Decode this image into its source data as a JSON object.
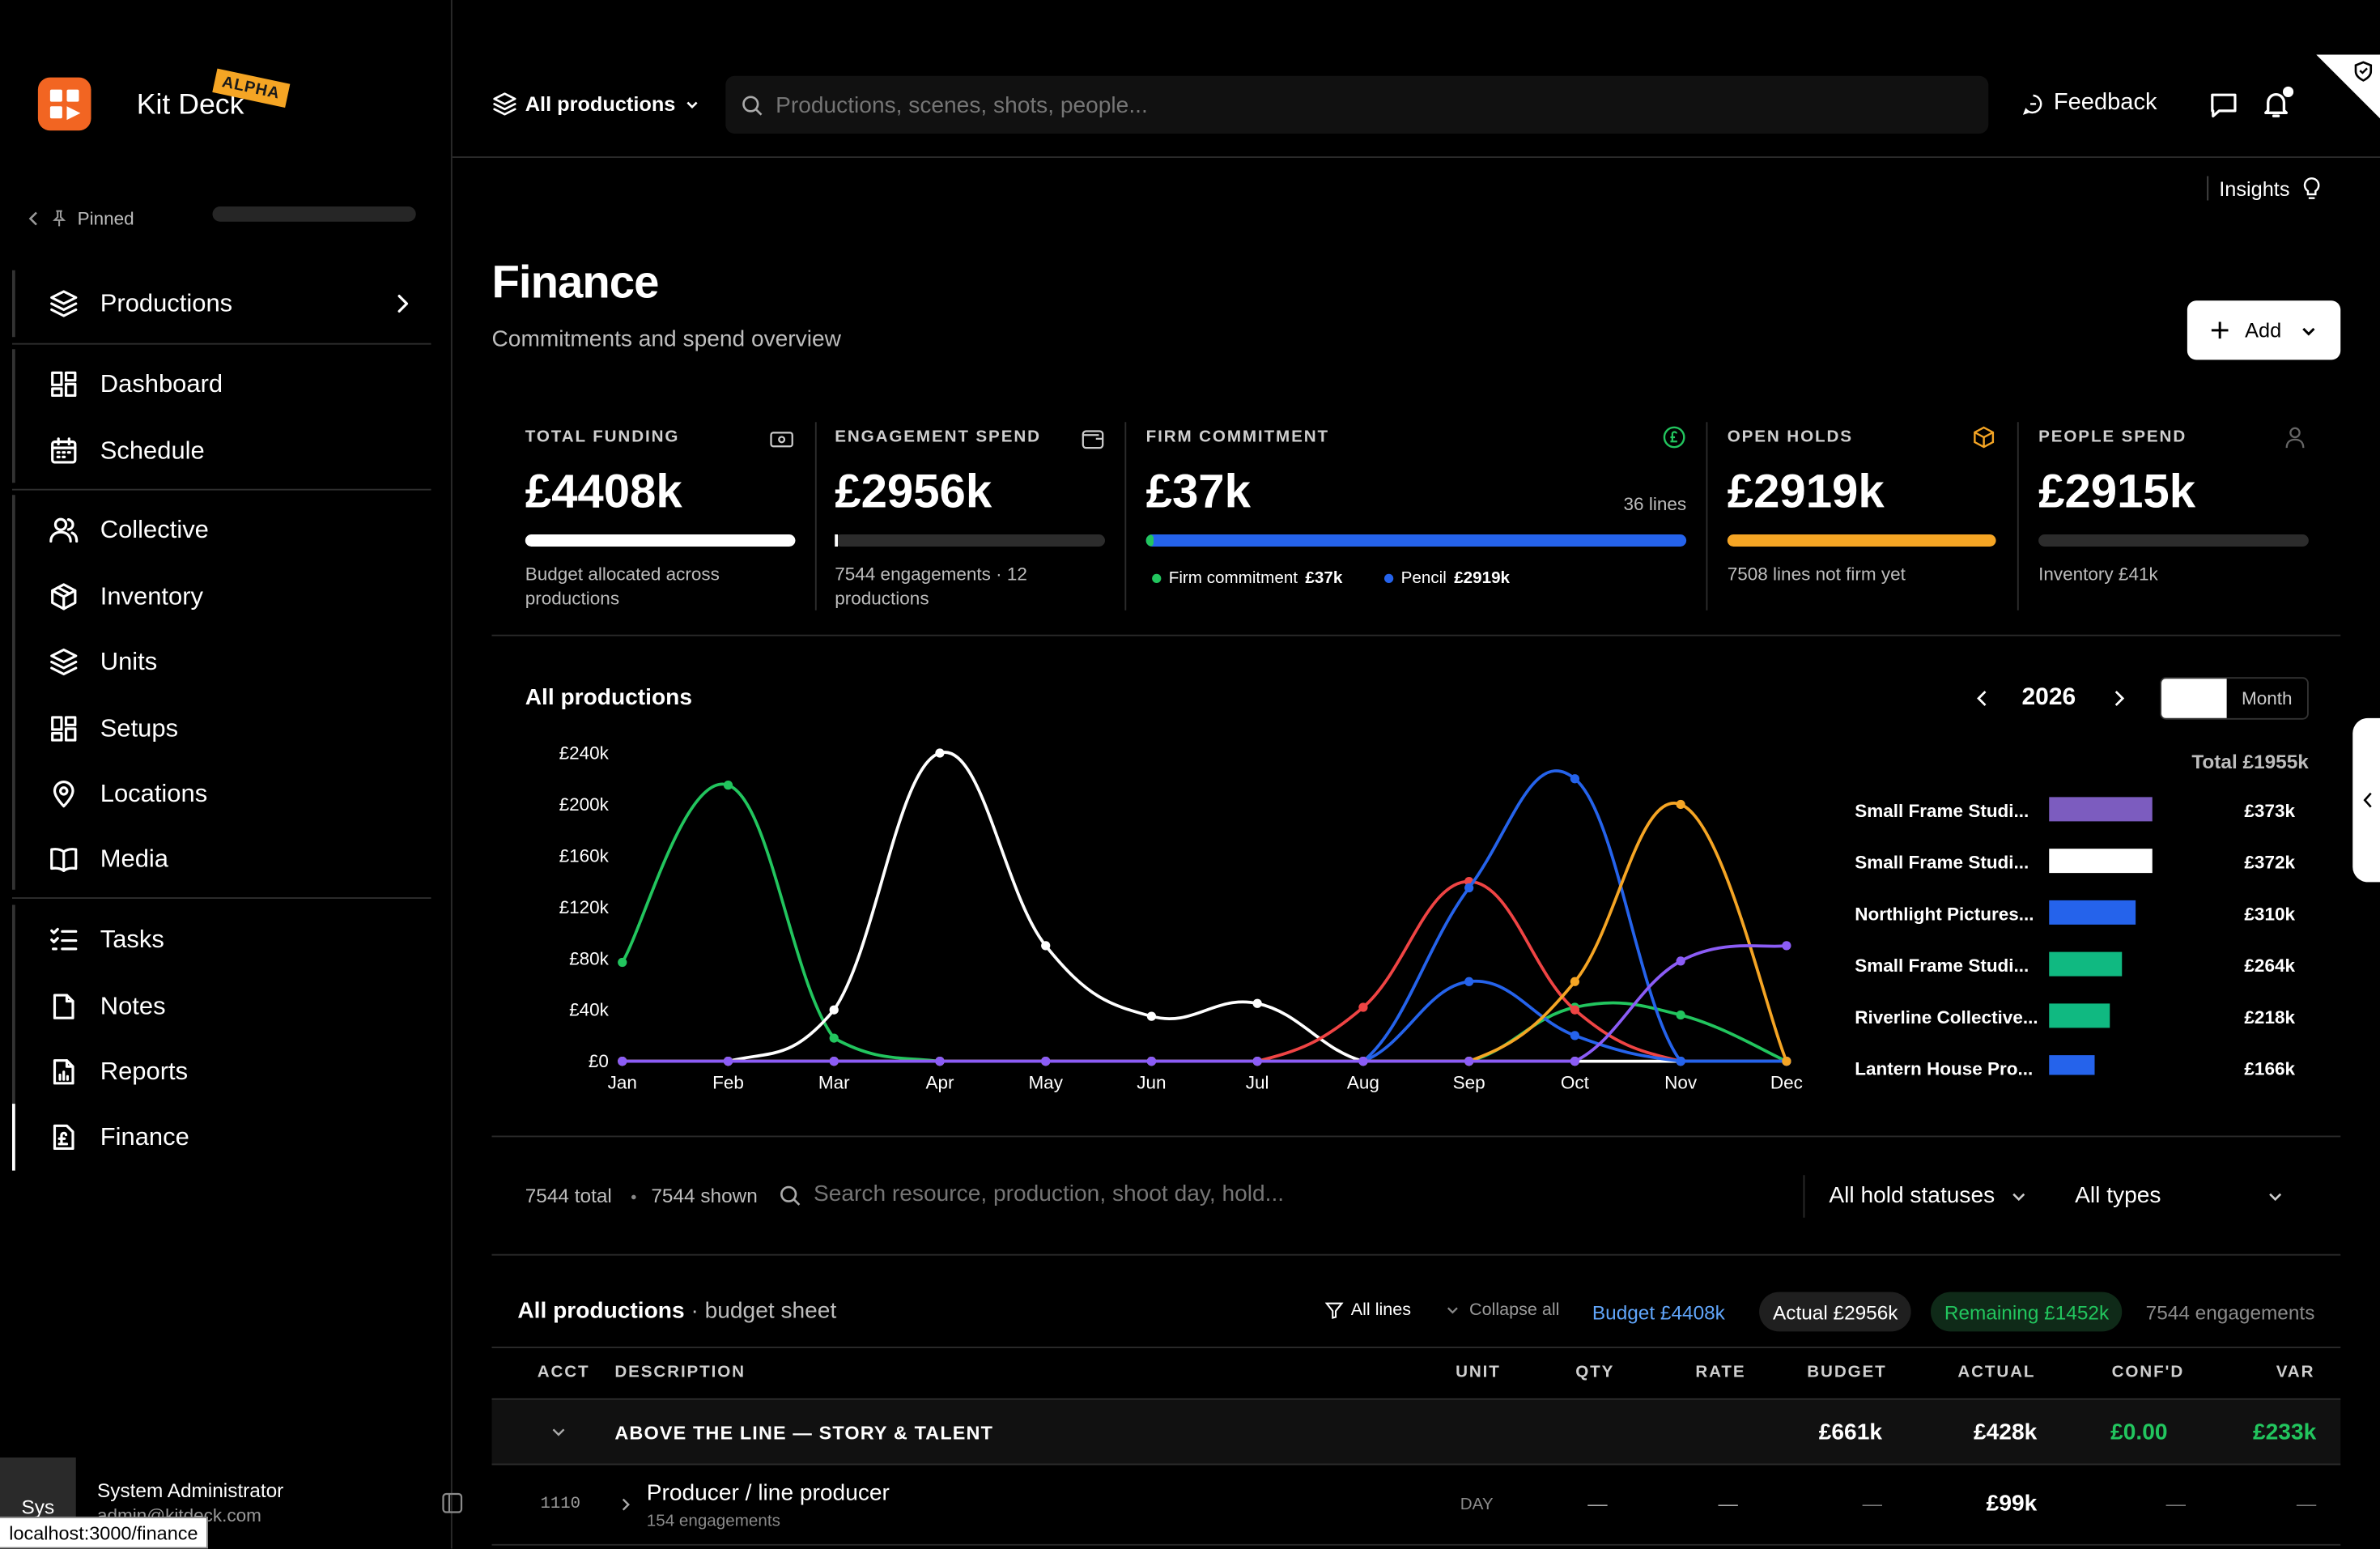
{
  "app": {
    "name": "Kit Deck",
    "badge": "ALPHA",
    "url": "localhost:3000/finance"
  },
  "topbar": {
    "scope": "All productions",
    "search_placeholder": "Productions, scenes, shots, people...",
    "feedback": "Feedback",
    "insights": "Insights"
  },
  "sidebar": {
    "pinned": "Pinned",
    "items": [
      {
        "label": "Productions",
        "icon": "layers-icon"
      },
      {
        "label": "Dashboard",
        "icon": "grid-icon"
      },
      {
        "label": "Schedule",
        "icon": "calendar-icon"
      },
      {
        "label": "Collective",
        "icon": "users-icon"
      },
      {
        "label": "Inventory",
        "icon": "box-icon"
      },
      {
        "label": "Units",
        "icon": "layers-icon"
      },
      {
        "label": "Setups",
        "icon": "grid-icon"
      },
      {
        "label": "Locations",
        "icon": "pin-icon"
      },
      {
        "label": "Media",
        "icon": "book-icon"
      },
      {
        "label": "Tasks",
        "icon": "list-icon"
      },
      {
        "label": "Notes",
        "icon": "note-icon"
      },
      {
        "label": "Reports",
        "icon": "report-icon"
      },
      {
        "label": "Finance",
        "icon": "pound-icon"
      }
    ],
    "user": {
      "initials": "Sys",
      "name": "System Administrator",
      "email": "admin@kitdeck.com"
    }
  },
  "page": {
    "title": "Finance",
    "subtitle": "Commitments and spend overview",
    "add_label": "Add"
  },
  "kpis": [
    {
      "label": "TOTAL FUNDING",
      "value": "£4408k",
      "sub": "Budget allocated across productions",
      "progress": 1.0,
      "color": "#ffffff"
    },
    {
      "label": "ENGAGEMENT SPEND",
      "value": "£2956k",
      "sub": "7544 engagements · 12 productions",
      "progress": 0.0,
      "color": "#ffffff"
    },
    {
      "label": "FIRM COMMITMENT",
      "value": "£37k",
      "extra": "36 lines",
      "legend_firm": "Firm commitment",
      "legend_firm_value": "£37k",
      "legend_pencil": "Pencil",
      "legend_pencil_value": "£2919k",
      "progress_firm": 0.013,
      "color_firm": "#22c55e",
      "color_pencil": "#2563eb"
    },
    {
      "label": "OPEN HOLDS",
      "value": "£2919k",
      "sub": "7508 lines not firm yet",
      "progress": 1.0,
      "color": "#f5a524"
    },
    {
      "label": "PEOPLE SPEND",
      "value": "£2915k",
      "sub": "Inventory £41k",
      "progress": 0.0,
      "color": "#ffffff"
    }
  ],
  "chart_panel": {
    "title": "All productions",
    "year": "2026",
    "toggle_month": "Month",
    "total": "Total £1955k"
  },
  "chart_data": {
    "type": "line",
    "x": [
      "Jan",
      "Feb",
      "Mar",
      "Apr",
      "May",
      "Jun",
      "Jul",
      "Aug",
      "Sep",
      "Oct",
      "Nov",
      "Dec"
    ],
    "yticks": [
      "£0",
      "£40k",
      "£80k",
      "£120k",
      "£160k",
      "£200k",
      "£240k"
    ],
    "ylim": [
      0,
      240
    ],
    "series": [
      {
        "color": "#22c55e",
        "values": [
          77,
          215,
          18,
          0,
          0,
          0,
          0,
          0,
          0,
          42,
          36,
          0
        ]
      },
      {
        "color": "#ffffff",
        "values": [
          0,
          0,
          40,
          240,
          90,
          35,
          45,
          0,
          0,
          0,
          0,
          0
        ]
      },
      {
        "color": "#ef4444",
        "values": [
          0,
          0,
          0,
          0,
          0,
          0,
          0,
          42,
          140,
          40,
          0,
          0
        ]
      },
      {
        "color": "#2563eb",
        "values": [
          0,
          0,
          0,
          0,
          0,
          0,
          0,
          0,
          135,
          220,
          0,
          0
        ]
      },
      {
        "color": "#2563eb",
        "values": [
          0,
          0,
          0,
          0,
          0,
          0,
          0,
          0,
          62,
          20,
          0,
          0
        ]
      },
      {
        "color": "#f5a524",
        "values": [
          0,
          0,
          0,
          0,
          0,
          0,
          0,
          0,
          0,
          62,
          200,
          0
        ]
      },
      {
        "color": "#8b5cf6",
        "values": [
          0,
          0,
          0,
          0,
          0,
          0,
          0,
          0,
          0,
          0,
          78,
          90
        ]
      }
    ],
    "legend": [
      {
        "name": "Small Frame Studi...",
        "value": "£373k",
        "amount": 373,
        "color": "#7c5cbf"
      },
      {
        "name": "Small Frame Studi...",
        "value": "£372k",
        "amount": 372,
        "color": "#ffffff"
      },
      {
        "name": "Northlight Pictures...",
        "value": "£310k",
        "amount": 310,
        "color": "#2563eb"
      },
      {
        "name": "Small Frame Studi...",
        "value": "£264k",
        "amount": 264,
        "color": "#10b981"
      },
      {
        "name": "Riverline Collective...",
        "value": "£218k",
        "amount": 218,
        "color": "#10b981"
      },
      {
        "name": "Lantern House Pro...",
        "value": "£166k",
        "amount": 166,
        "color": "#2563eb"
      }
    ]
  },
  "filters": {
    "total": "7544 total",
    "shown": "7544 shown",
    "search_placeholder": "Search resource, production, shoot day, hold...",
    "status": "All hold statuses",
    "types": "All types"
  },
  "sheet": {
    "title": "All productions",
    "subtitle": "· budget sheet",
    "all_lines": "All lines",
    "collapse": "Collapse all",
    "budget": "Budget £4408k",
    "actual": "Actual £2956k",
    "remaining": "Remaining £1452k",
    "engagements": "7544 engagements",
    "columns": [
      "ACCT",
      "DESCRIPTION",
      "UNIT",
      "QTY",
      "RATE",
      "BUDGET",
      "ACTUAL",
      "CONF'D",
      "VAR"
    ],
    "group": {
      "label": "ABOVE THE LINE — STORY & TALENT",
      "budget": "£661k",
      "actual": "£428k",
      "confd": "£0.00",
      "var": "£233k"
    },
    "row": {
      "acct": "1110",
      "desc": "Producer / line producer",
      "sub": "154 engagements",
      "unit": "DAY",
      "qty": "—",
      "rate": "—",
      "budget": "—",
      "actual": "£99k",
      "confd": "—",
      "var": "—"
    }
  }
}
